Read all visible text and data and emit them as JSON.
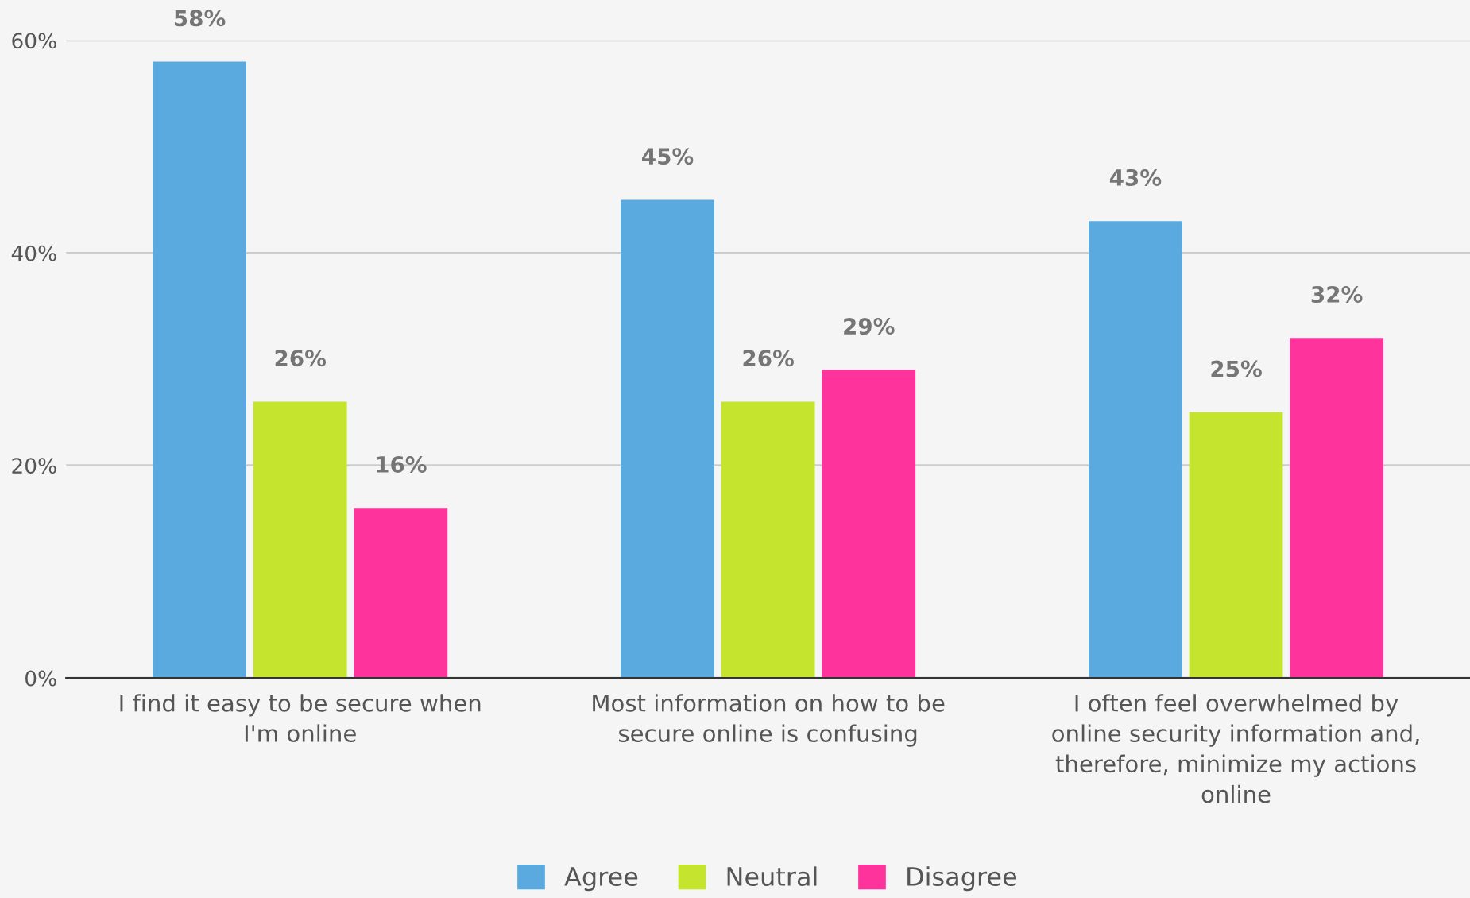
{
  "chart_data": {
    "type": "bar",
    "categories": [
      "I find it easy to be secure when I'm online",
      "Most information on how to be secure online is confusing",
      "I often feel overwhelmed by online security information and, therefore, minimize my actions online"
    ],
    "series": [
      {
        "name": "Agree",
        "color": "#5aaae0",
        "values": [
          58,
          45,
          43
        ],
        "value_labels": [
          "58%",
          "45%",
          "43%"
        ]
      },
      {
        "name": "Neutral",
        "color": "#c4e42e",
        "values": [
          26,
          26,
          25
        ],
        "value_labels": [
          "26%",
          "26%",
          "25%"
        ]
      },
      {
        "name": "Disagree",
        "color": "#ff339c",
        "values": [
          16,
          29,
          32
        ],
        "value_labels": [
          "16%",
          "29%",
          "32%"
        ]
      }
    ],
    "ylim": [
      0,
      60
    ],
    "yticks": [
      {
        "value": 0,
        "label": "0%"
      },
      {
        "value": 20,
        "label": "20%"
      },
      {
        "value": 40,
        "label": "40%"
      },
      {
        "value": 60,
        "label": "60%"
      }
    ],
    "grid": "y",
    "legend": "bottom"
  }
}
